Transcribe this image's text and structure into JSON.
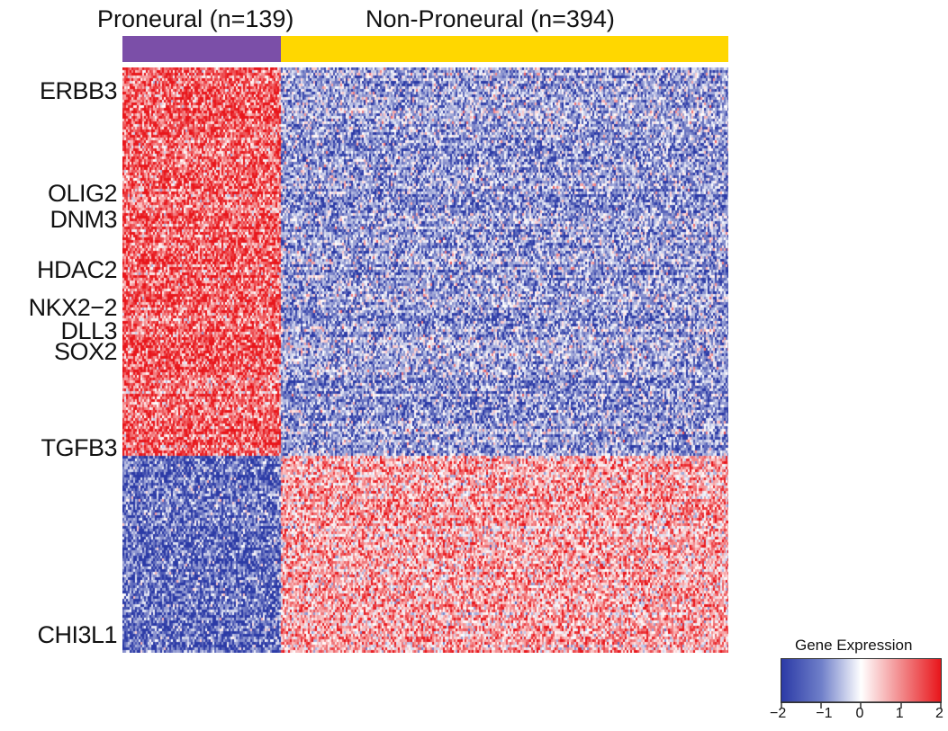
{
  "chart_data": {
    "type": "heatmap",
    "title": "",
    "groups": [
      {
        "name": "Proneural (n=139)",
        "n": 139,
        "color": "#7b4fa8"
      },
      {
        "name": "Non-Proneural (n=394)",
        "n": 394,
        "color": "#ffd700"
      }
    ],
    "gene_labels": [
      "ERBB3",
      "OLIG2",
      "DNM3",
      "HDAC2",
      "NKX2−2",
      "DLL3",
      "SOX2",
      "TGFB3",
      "CHI3L1"
    ],
    "gene_label_rows": [
      0.04,
      0.215,
      0.26,
      0.345,
      0.41,
      0.45,
      0.485,
      0.65,
      0.97
    ],
    "gene_clusters": [
      {
        "name": "upper",
        "row_fraction": 0.66,
        "proneural_mean": 1.4,
        "non_proneural_mean": -0.9
      },
      {
        "name": "lower",
        "row_fraction": 0.34,
        "proneural_mean": -1.4,
        "non_proneural_mean": 0.8
      }
    ],
    "legend": {
      "title": "Gene Expression",
      "min": -2,
      "max": 2,
      "ticks": [
        "−2",
        "−1",
        "0",
        "1",
        "2"
      ],
      "tick_values": [
        -2,
        -1,
        0,
        1,
        2
      ],
      "colors": {
        "low": "#2b3aa6",
        "mid": "#ffffff",
        "high": "#e8161b"
      },
      "placement": "bottom-right"
    }
  }
}
